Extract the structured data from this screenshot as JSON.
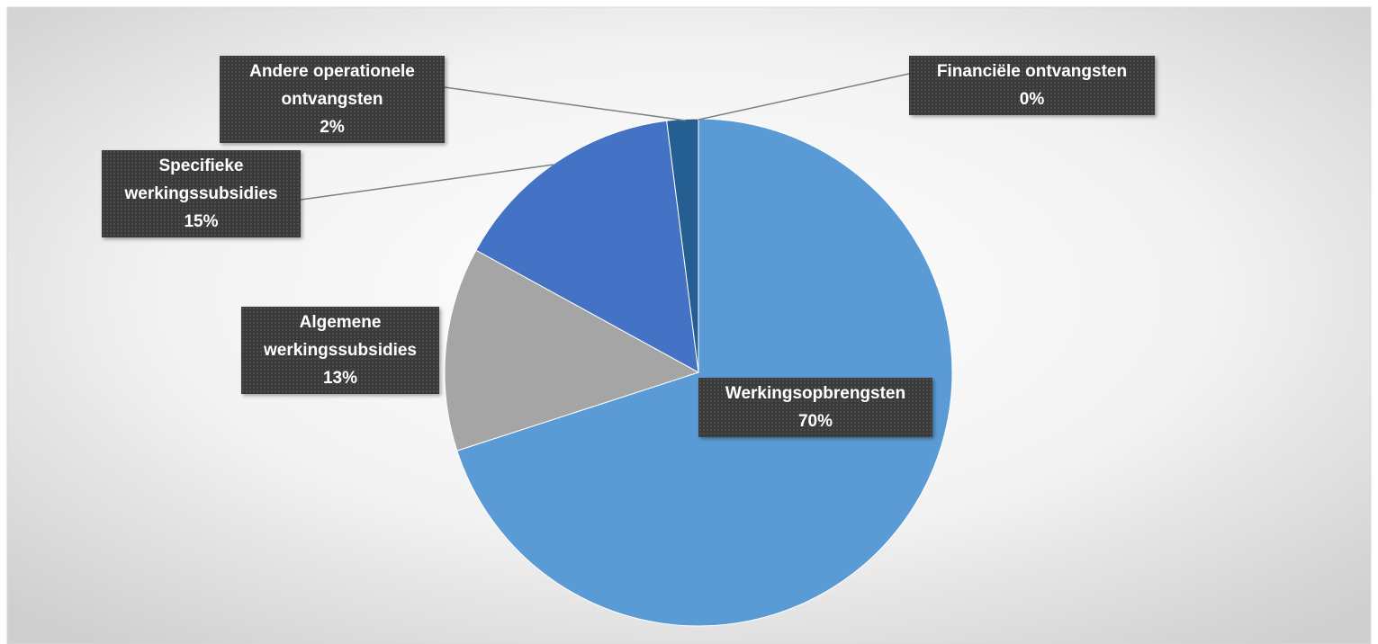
{
  "chart_data": {
    "type": "pie",
    "categories": [
      "Werkingsopbrengsten",
      "Algemene werkingssubsidies",
      "Specifieke werkingssubsidies",
      "Andere operationele ontvangsten",
      "Financiële ontvangsten"
    ],
    "values": [
      70,
      13,
      15,
      2,
      0
    ],
    "value_labels": [
      "70%",
      "13%",
      "15%",
      "2%",
      "0%"
    ],
    "colors": [
      "#5b9bd5",
      "#a5a5a5",
      "#4472c4",
      "#255e91",
      "#264478"
    ]
  }
}
